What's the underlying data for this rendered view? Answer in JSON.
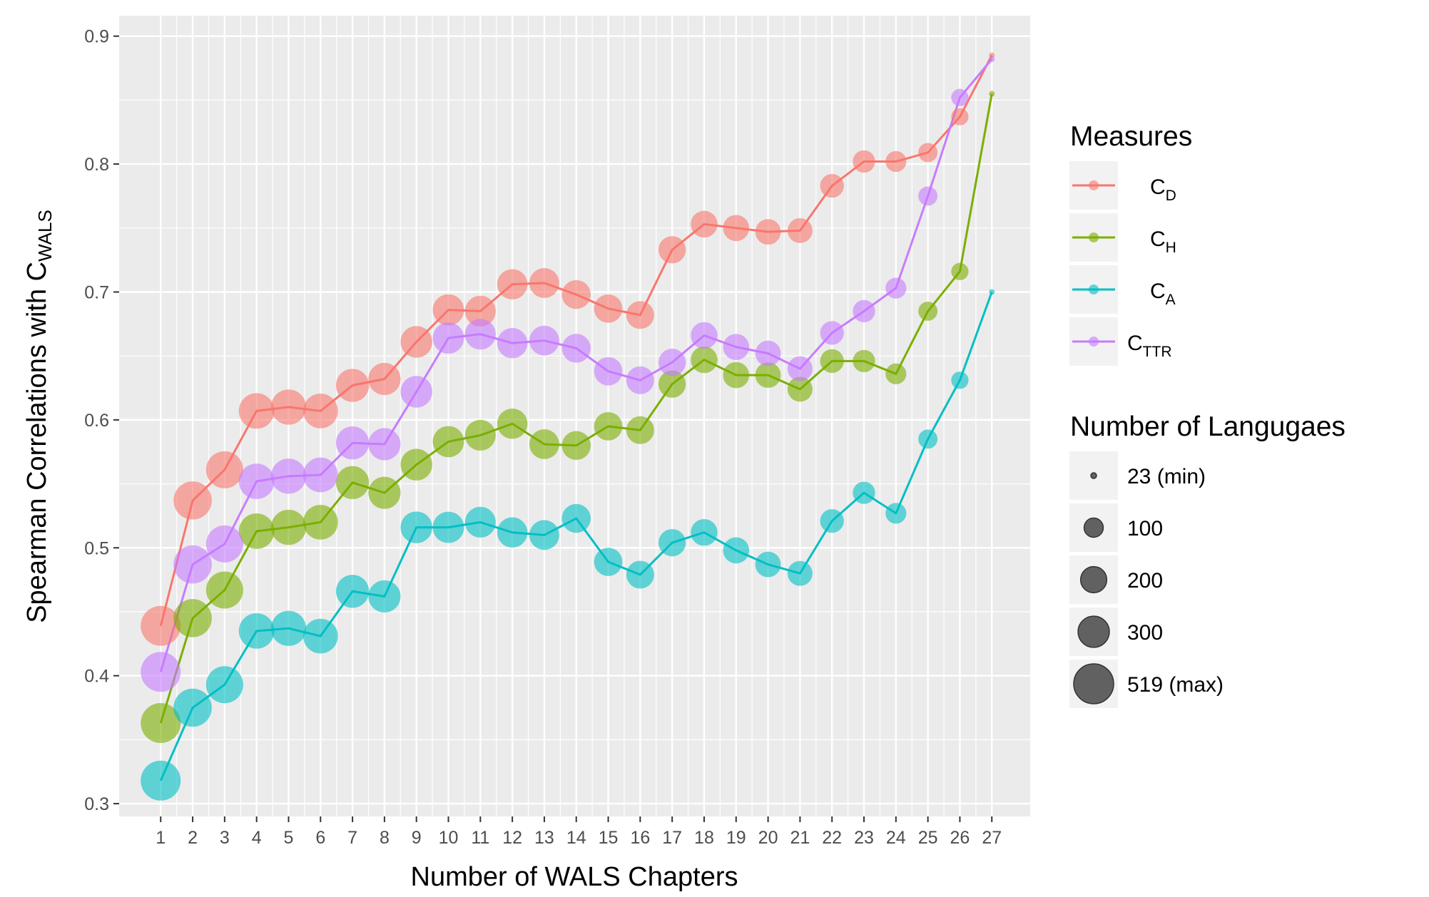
{
  "chart_data": {
    "type": "line",
    "xlabel": "Number of WALS Chapters",
    "ylabel": {
      "main": "Spearman Correlations with C",
      "sub": "WALS"
    },
    "x": [
      1,
      2,
      3,
      4,
      5,
      6,
      7,
      8,
      9,
      10,
      11,
      12,
      13,
      14,
      15,
      16,
      17,
      18,
      19,
      20,
      21,
      22,
      23,
      24,
      25,
      26,
      27
    ],
    "x_ticks": [
      "1",
      "2",
      "3",
      "4",
      "5",
      "6",
      "7",
      "8",
      "9",
      "10",
      "11",
      "12",
      "13",
      "14",
      "15",
      "16",
      "17",
      "18",
      "19",
      "20",
      "21",
      "22",
      "23",
      "24",
      "25",
      "26",
      "27"
    ],
    "xlim": [
      -0.3,
      28.2
    ],
    "ylim": [
      0.29,
      0.916
    ],
    "y_ticks": [
      0.3,
      0.4,
      0.5,
      0.6,
      0.7,
      0.8,
      0.9
    ],
    "y_tick_labels": [
      "0.3",
      "0.4",
      "0.5",
      "0.6",
      "0.7",
      "0.8",
      "0.9"
    ],
    "grid": true,
    "legend_position": "right",
    "series": [
      {
        "name": "C",
        "sub": "D",
        "color": "#F8766D",
        "values": [
          0.439,
          0.537,
          0.561,
          0.607,
          0.61,
          0.607,
          0.627,
          0.632,
          0.661,
          0.686,
          0.685,
          0.706,
          0.707,
          0.698,
          0.687,
          0.682,
          0.733,
          0.753,
          0.75,
          0.747,
          0.748,
          0.783,
          0.802,
          0.802,
          0.809,
          0.837,
          0.885
        ]
      },
      {
        "name": "C",
        "sub": "H",
        "color": "#7CAE00",
        "values": [
          0.363,
          0.445,
          0.467,
          0.513,
          0.516,
          0.52,
          0.551,
          0.543,
          0.565,
          0.583,
          0.588,
          0.597,
          0.581,
          0.58,
          0.595,
          0.592,
          0.628,
          0.647,
          0.635,
          0.635,
          0.624,
          0.646,
          0.646,
          0.636,
          0.685,
          0.716,
          0.855
        ]
      },
      {
        "name": "C",
        "sub": "A",
        "color": "#00BFC4",
        "values": [
          0.318,
          0.375,
          0.393,
          0.435,
          0.437,
          0.431,
          0.466,
          0.462,
          0.516,
          0.516,
          0.52,
          0.512,
          0.51,
          0.523,
          0.489,
          0.479,
          0.504,
          0.512,
          0.498,
          0.487,
          0.48,
          0.521,
          0.543,
          0.527,
          0.585,
          0.631,
          0.7
        ]
      },
      {
        "name": "C",
        "sub": "TTR",
        "color": "#C77CFF",
        "values": [
          0.403,
          0.487,
          0.503,
          0.552,
          0.556,
          0.557,
          0.582,
          0.581,
          0.622,
          0.664,
          0.667,
          0.66,
          0.662,
          0.656,
          0.638,
          0.631,
          0.645,
          0.666,
          0.657,
          0.652,
          0.64,
          0.668,
          0.685,
          0.703,
          0.775,
          0.852,
          0.882
        ]
      }
    ],
    "point_size": {
      "label": "Number of Langugaes",
      "languages": [
        519,
        470,
        440,
        400,
        390,
        380,
        340,
        320,
        310,
        300,
        290,
        280,
        270,
        250,
        240,
        230,
        220,
        210,
        200,
        190,
        180,
        160,
        140,
        120,
        100,
        80,
        23
      ]
    },
    "point_alpha": 0.6,
    "legend": {
      "color_title": "Measures",
      "size_title": "Number of Langugaes",
      "size_entries": [
        {
          "label": "23 (min)",
          "value": 23
        },
        {
          "label": "100",
          "value": 100
        },
        {
          "label": "200",
          "value": 200
        },
        {
          "label": "300",
          "value": 300
        },
        {
          "label": "519 (max)",
          "value": 519
        }
      ]
    }
  }
}
